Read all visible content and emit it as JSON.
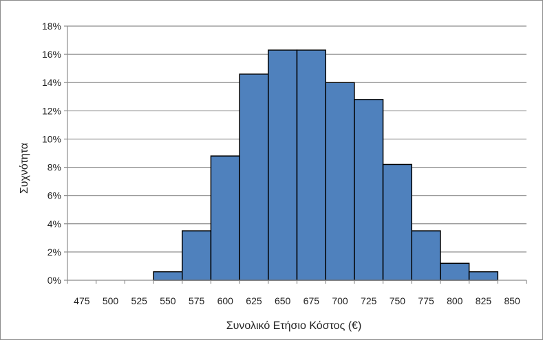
{
  "chart_data": {
    "type": "bar",
    "subtype": "histogram",
    "xlabel": "Συνολικό Ετήσιο Κόστος (€)",
    "ylabel": "Συχνότητα",
    "x_tick_labels": [
      "475",
      "500",
      "525",
      "550",
      "575",
      "600",
      "625",
      "650",
      "675",
      "700",
      "725",
      "750",
      "775",
      "800",
      "825",
      "850"
    ],
    "y_tick_labels": [
      "0%",
      "2%",
      "4%",
      "6%",
      "8%",
      "10%",
      "12%",
      "14%",
      "16%",
      "18%"
    ],
    "ylim": [
      0,
      18
    ],
    "bin_width": 25,
    "bins": [
      {
        "center": 550,
        "value": 0.6
      },
      {
        "center": 575,
        "value": 3.5
      },
      {
        "center": 600,
        "value": 8.8
      },
      {
        "center": 625,
        "value": 14.6
      },
      {
        "center": 650,
        "value": 16.3
      },
      {
        "center": 675,
        "value": 16.3
      },
      {
        "center": 700,
        "value": 14.0
      },
      {
        "center": 725,
        "value": 12.8
      },
      {
        "center": 750,
        "value": 8.2
      },
      {
        "center": 775,
        "value": 3.5
      },
      {
        "center": 800,
        "value": 1.2
      },
      {
        "center": 825,
        "value": 0.6
      }
    ],
    "grid": true,
    "colors": {
      "bar": "#4f81bd",
      "bar_edge": "#000000",
      "grid": "#8c8c8c"
    }
  }
}
